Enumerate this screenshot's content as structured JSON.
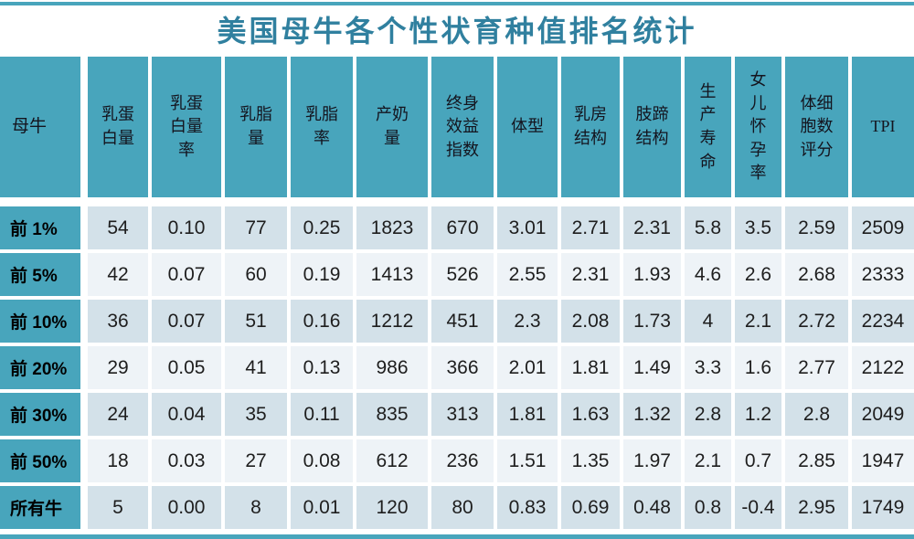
{
  "title": "美国母牛各个性状育种值排名统计",
  "colors": {
    "accent_teal": "#48a5bc",
    "title_teal": "#30809f",
    "stripe_dark": "#d3e1e9",
    "stripe_light": "#eef3f7",
    "header_text": "#14141e"
  },
  "columns": [
    {
      "label": "母牛"
    },
    {
      "label": "乳蛋\n白量"
    },
    {
      "label": "乳蛋\n白量\n率"
    },
    {
      "label": "乳脂\n量"
    },
    {
      "label": "乳脂\n率"
    },
    {
      "label": "产奶\n量"
    },
    {
      "label": "终身\n效益\n指数"
    },
    {
      "label": "体型"
    },
    {
      "label": "乳房\n结构"
    },
    {
      "label": "肢蹄\n结构"
    },
    {
      "label": "生\n产\n寿\n命"
    },
    {
      "label": "女\n儿\n怀\n孕\n率"
    },
    {
      "label": "体细\n胞数\n评分"
    },
    {
      "label": "TPI"
    }
  ],
  "rows": [
    {
      "label": "前 1%",
      "values": [
        "54",
        "0.10",
        "77",
        "0.25",
        "1823",
        "670",
        "3.01",
        "2.71",
        "2.31",
        "5.8",
        "3.5",
        "2.59",
        "2509"
      ]
    },
    {
      "label": "前 5%",
      "values": [
        "42",
        "0.07",
        "60",
        "0.19",
        "1413",
        "526",
        "2.55",
        "2.31",
        "1.93",
        "4.6",
        "2.6",
        "2.68",
        "2333"
      ]
    },
    {
      "label": "前 10%",
      "values": [
        "36",
        "0.07",
        "51",
        "0.16",
        "1212",
        "451",
        "2.3",
        "2.08",
        "1.73",
        "4",
        "2.1",
        "2.72",
        "2234"
      ]
    },
    {
      "label": "前 20%",
      "values": [
        "29",
        "0.05",
        "41",
        "0.13",
        "986",
        "366",
        "2.01",
        "1.81",
        "1.49",
        "3.3",
        "1.6",
        "2.77",
        "2122"
      ]
    },
    {
      "label": "前 30%",
      "values": [
        "24",
        "0.04",
        "35",
        "0.11",
        "835",
        "313",
        "1.81",
        "1.63",
        "1.32",
        "2.8",
        "1.2",
        "2.8",
        "2049"
      ]
    },
    {
      "label": "前 50%",
      "values": [
        "18",
        "0.03",
        "27",
        "0.08",
        "612",
        "236",
        "1.51",
        "1.35",
        "1.97",
        "2.1",
        "0.7",
        "2.85",
        "1947"
      ]
    },
    {
      "label": "所有牛",
      "values": [
        "5",
        "0.00",
        "8",
        "0.01",
        "120",
        "80",
        "0.83",
        "0.69",
        "0.48",
        "0.8",
        "-0.4",
        "2.95",
        "1749"
      ]
    }
  ],
  "chart_data": {
    "type": "table",
    "title": "美国母牛各个性状育种值排名统计",
    "columns": [
      "母牛",
      "乳蛋白量",
      "乳蛋白量率",
      "乳脂量",
      "乳脂率",
      "产奶量",
      "终身效益指数",
      "体型",
      "乳房结构",
      "肢蹄结构",
      "生产寿命",
      "女儿怀孕率",
      "体细胞数评分",
      "TPI"
    ],
    "rows": [
      {
        "group": "前 1%",
        "values": [
          54,
          0.1,
          77,
          0.25,
          1823,
          670,
          3.01,
          2.71,
          2.31,
          5.8,
          3.5,
          2.59,
          2509
        ]
      },
      {
        "group": "前 5%",
        "values": [
          42,
          0.07,
          60,
          0.19,
          1413,
          526,
          2.55,
          2.31,
          1.93,
          4.6,
          2.6,
          2.68,
          2333
        ]
      },
      {
        "group": "前 10%",
        "values": [
          36,
          0.07,
          51,
          0.16,
          1212,
          451,
          2.3,
          2.08,
          1.73,
          4,
          2.1,
          2.72,
          2234
        ]
      },
      {
        "group": "前 20%",
        "values": [
          29,
          0.05,
          41,
          0.13,
          986,
          366,
          2.01,
          1.81,
          1.49,
          3.3,
          1.6,
          2.77,
          2122
        ]
      },
      {
        "group": "前 30%",
        "values": [
          24,
          0.04,
          35,
          0.11,
          835,
          313,
          1.81,
          1.63,
          1.32,
          2.8,
          1.2,
          2.8,
          2049
        ]
      },
      {
        "group": "前 50%",
        "values": [
          18,
          0.03,
          27,
          0.08,
          612,
          236,
          1.51,
          1.35,
          1.97,
          2.1,
          0.7,
          2.85,
          1947
        ]
      },
      {
        "group": "所有牛",
        "values": [
          5,
          0.0,
          8,
          0.01,
          120,
          80,
          0.83,
          0.69,
          0.48,
          0.8,
          -0.4,
          2.95,
          1749
        ]
      }
    ],
    "legend_position": "none",
    "grid": "white cell separators, alternating row shading"
  }
}
